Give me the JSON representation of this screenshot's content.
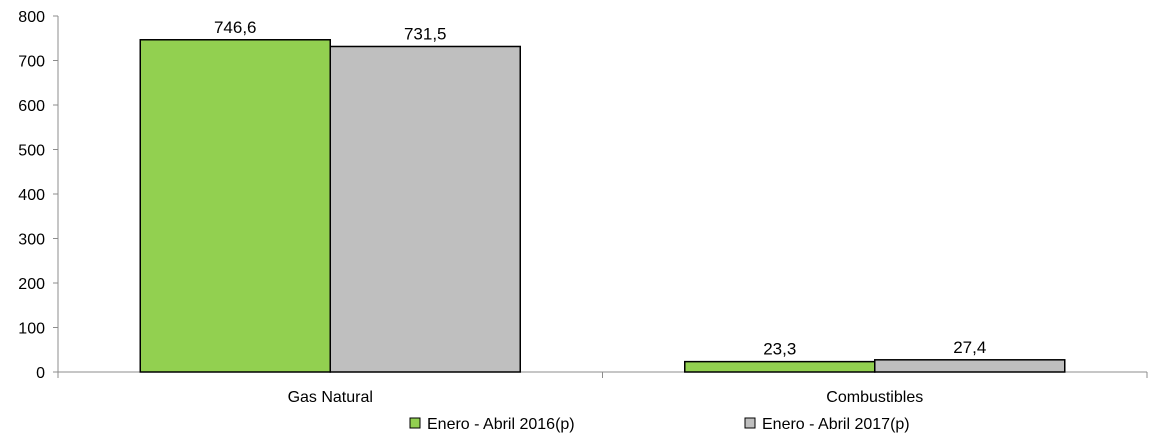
{
  "chart_data": {
    "type": "bar",
    "categories": [
      "Gas Natural",
      "Combustibles"
    ],
    "series": [
      {
        "name": "Enero - Abril 2016(p)",
        "values": [
          746.6,
          23.3
        ],
        "labels": [
          "746,6",
          "23,3"
        ],
        "color": "#92d050"
      },
      {
        "name": "Enero - Abril 2017(p)",
        "values": [
          731.5,
          27.4
        ],
        "labels": [
          "731,5",
          "27,4"
        ],
        "color": "#bfbfbf"
      }
    ],
    "ylim": [
      0,
      800
    ],
    "yticks": [
      0,
      100,
      200,
      300,
      400,
      500,
      600,
      700,
      800
    ],
    "grid": false,
    "legend_position": "bottom"
  }
}
